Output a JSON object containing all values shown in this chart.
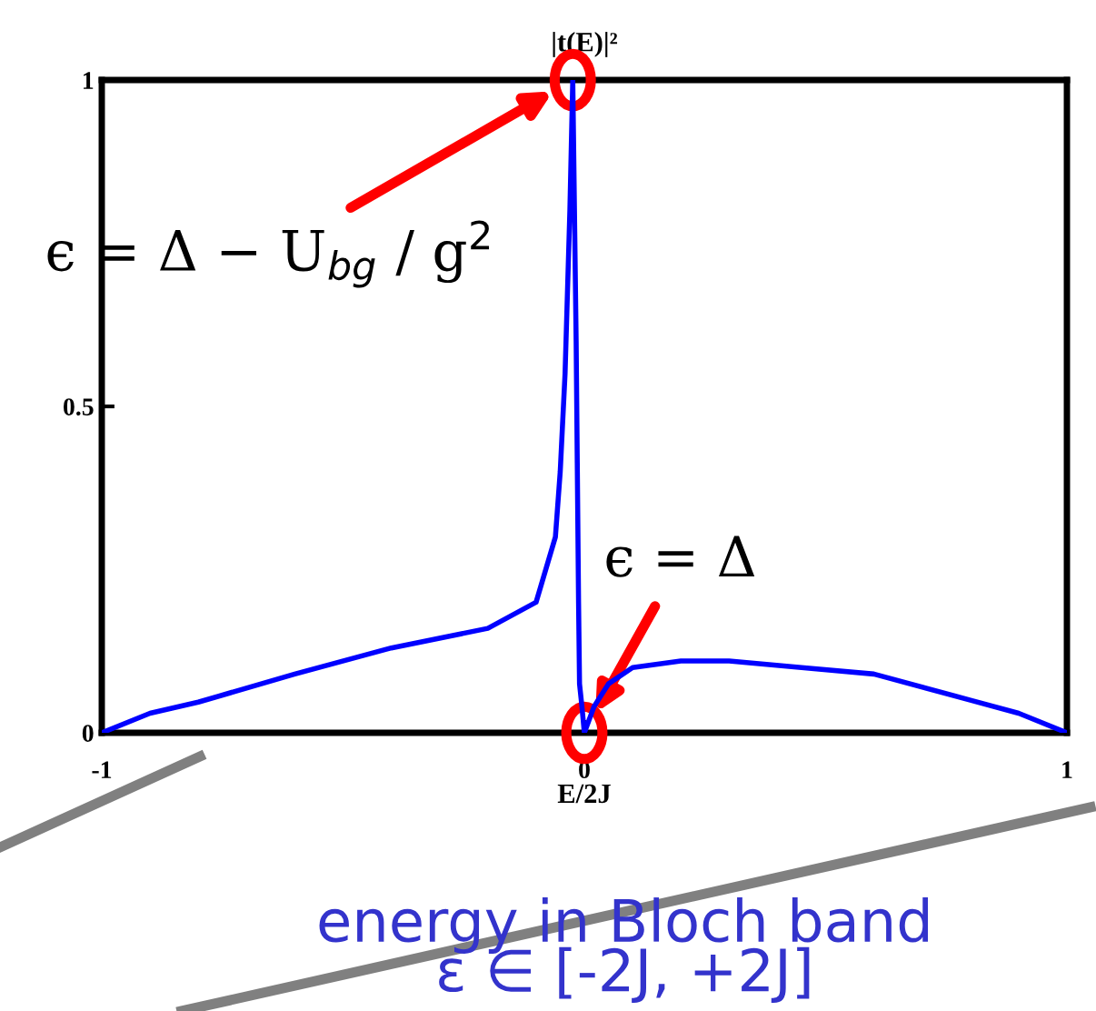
{
  "chart_data": {
    "type": "line",
    "xlabel": "E/2J",
    "ylabel": "|t(E)|²",
    "x": [
      -1,
      -0.9,
      -0.8,
      -0.6,
      -0.4,
      -0.2,
      -0.1,
      -0.06,
      -0.05,
      -0.04,
      -0.03,
      -0.024,
      -0.017,
      -0.012,
      -0.01,
      -0.005,
      0,
      0.02,
      0.05,
      0.1,
      0.2,
      0.3,
      0.45,
      0.6,
      0.8,
      0.9,
      1
    ],
    "series": [
      {
        "color": "#0000ff",
        "values": [
          0,
          0.03,
          0.047,
          0.09,
          0.13,
          0.16,
          0.2,
          0.3,
          0.4,
          0.55,
          0.8,
          1,
          0.6,
          0.2,
          0.075,
          0.04,
          0,
          0.04,
          0.075,
          0.1,
          0.11,
          0.11,
          0.1,
          0.09,
          0.05,
          0.03,
          0
        ]
      }
    ],
    "xlim": [
      -1,
      1
    ],
    "ylim": [
      0,
      1
    ],
    "xticks": [
      -1,
      0,
      1
    ],
    "yticks": [
      0,
      0.5,
      1
    ],
    "grid": false,
    "legend": false,
    "marker": "none",
    "line_style": "solid",
    "annotations": [
      {
        "text": "ϵ = Δ − U$_{bg}$ / g$^{2}$",
        "x": -0.024,
        "y": 1
      },
      {
        "text": "ϵ = Δ",
        "x": 0,
        "y": 0
      },
      "energy in Bloch band\nε ∈ [-2J, +2J]"
    ]
  }
}
